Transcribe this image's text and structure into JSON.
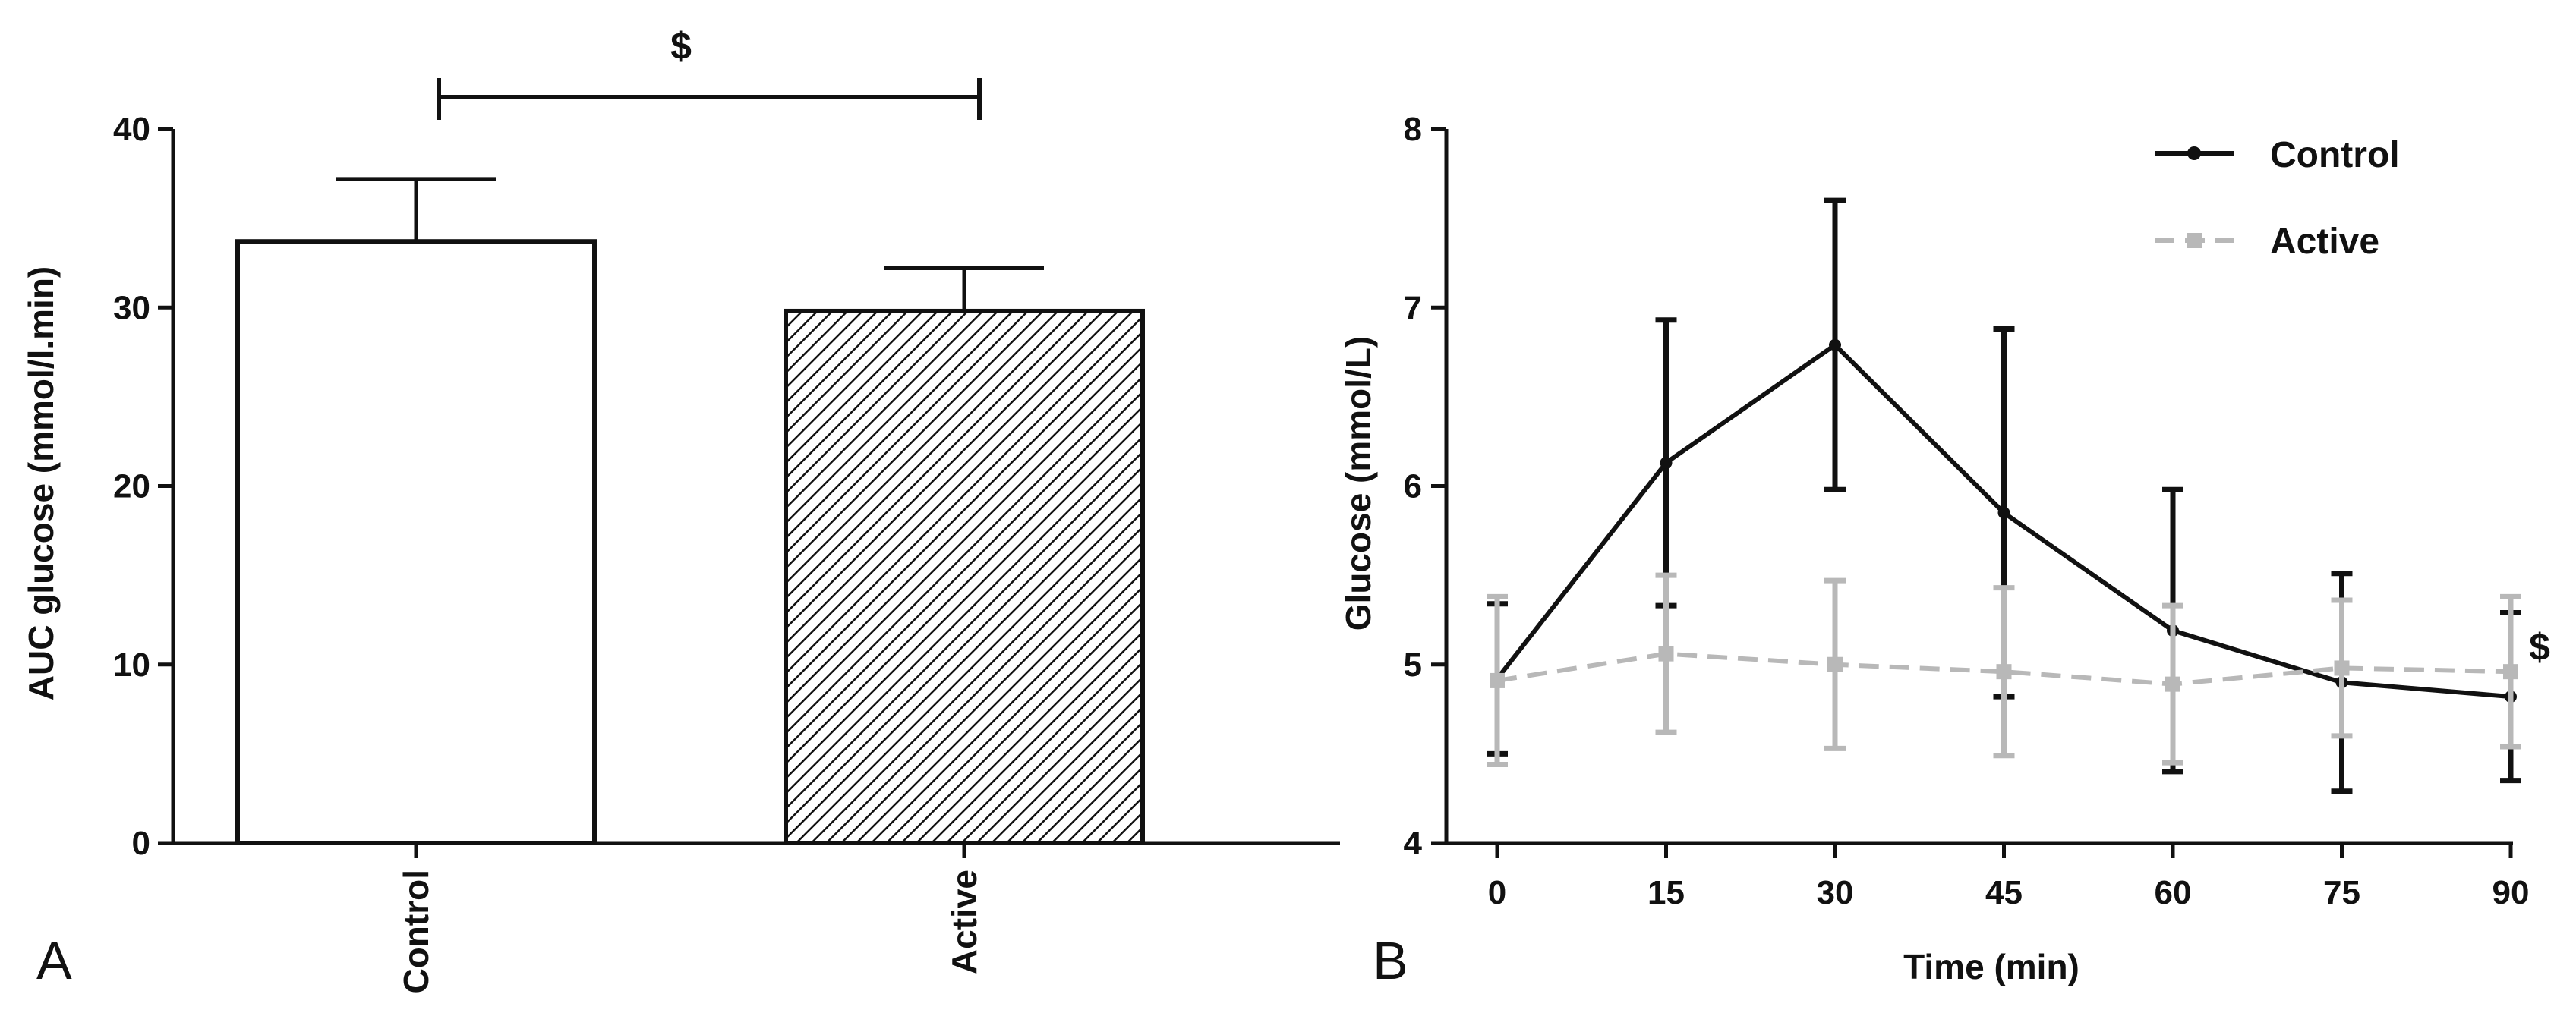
{
  "panels": {
    "a": "A",
    "b": "B"
  },
  "colors": {
    "control": "#111111",
    "active": "#b8b8b8"
  },
  "chart_data": [
    {
      "type": "bar",
      "title": "",
      "xlabel": "",
      "ylabel": "AUC glucose (mmol/l.min)",
      "ylim": [
        0,
        40
      ],
      "yticks": [
        0,
        10,
        20,
        30,
        40
      ],
      "categories": [
        "Control",
        "Active"
      ],
      "values": [
        33.7,
        29.8
      ],
      "errors": [
        3.5,
        2.4
      ],
      "fills": [
        "white",
        "hatched"
      ],
      "significance": {
        "between": [
          "Control",
          "Active"
        ],
        "label": "$"
      }
    },
    {
      "type": "line",
      "title": "",
      "xlabel": "Time (min)",
      "ylabel": "Glucose (mmol/L)",
      "xlim": [
        0,
        90
      ],
      "ylim": [
        4,
        8
      ],
      "xticks": [
        0,
        15,
        30,
        45,
        60,
        75,
        90
      ],
      "yticks": [
        4,
        5,
        6,
        7,
        8
      ],
      "x": [
        0,
        15,
        30,
        45,
        60,
        75,
        90
      ],
      "series": [
        {
          "name": "Control",
          "style": "solid",
          "marker": "circle",
          "values": [
            4.92,
            6.13,
            6.79,
            5.85,
            5.19,
            4.9,
            4.82
          ],
          "errors": [
            0.42,
            0.8,
            0.81,
            1.03,
            0.79,
            0.61,
            0.47
          ]
        },
        {
          "name": "Active",
          "style": "dashed",
          "marker": "square",
          "values": [
            4.91,
            5.06,
            5.0,
            4.96,
            4.89,
            4.98,
            4.96
          ],
          "errors": [
            0.47,
            0.44,
            0.47,
            0.47,
            0.44,
            0.38,
            0.42
          ]
        }
      ],
      "legend": "top-right",
      "annotation": "$"
    }
  ]
}
